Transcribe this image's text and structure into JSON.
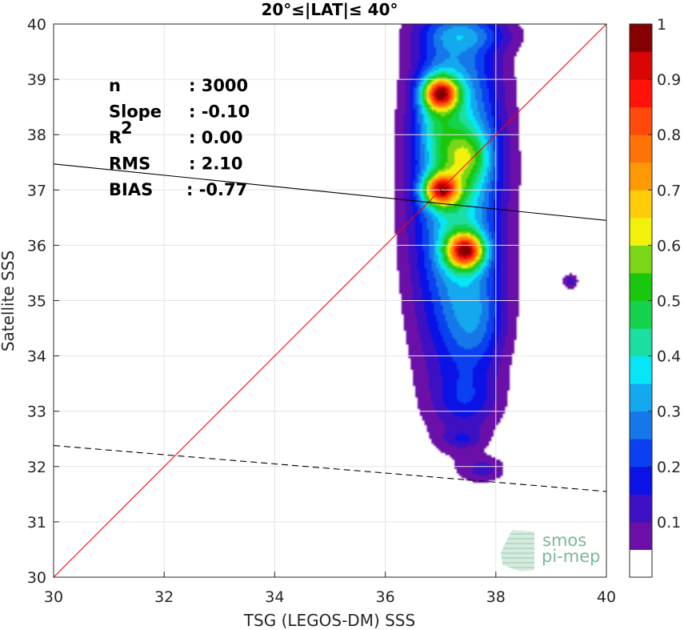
{
  "chart_data": {
    "type": "heatmap",
    "title": "20°≤|LAT|≤ 40°",
    "xlabel": "TSG (LEGOS-DM) SSS",
    "ylabel": "Satellite SSS",
    "xlim": [
      30,
      40
    ],
    "ylim": [
      30,
      40
    ],
    "x_ticks": [
      "30",
      "32",
      "34",
      "36",
      "38",
      "40"
    ],
    "y_ticks": [
      "30",
      "31",
      "32",
      "33",
      "34",
      "35",
      "36",
      "37",
      "38",
      "39",
      "40"
    ],
    "grid": true,
    "colorbar": {
      "range": [
        0,
        1
      ],
      "tick_labels": [
        "0.1",
        "0.2",
        "0.3",
        "0.4",
        "0.5",
        "0.6",
        "0.7",
        "0.8",
        "0.9",
        "1"
      ],
      "levels": [
        {
          "from": 0.0,
          "to": 0.05,
          "color": "#ffffff"
        },
        {
          "from": 0.05,
          "to": 0.1,
          "color": "#6a0fa8"
        },
        {
          "from": 0.1,
          "to": 0.15,
          "color": "#3d10c4"
        },
        {
          "from": 0.15,
          "to": 0.2,
          "color": "#0a12e6"
        },
        {
          "from": 0.2,
          "to": 0.25,
          "color": "#0a40f0"
        },
        {
          "from": 0.25,
          "to": 0.3,
          "color": "#1677e8"
        },
        {
          "from": 0.3,
          "to": 0.35,
          "color": "#14a8ee"
        },
        {
          "from": 0.35,
          "to": 0.4,
          "color": "#06e6f6"
        },
        {
          "from": 0.4,
          "to": 0.45,
          "color": "#1adfa0"
        },
        {
          "from": 0.45,
          "to": 0.5,
          "color": "#15d24d"
        },
        {
          "from": 0.5,
          "to": 0.55,
          "color": "#19c80c"
        },
        {
          "from": 0.55,
          "to": 0.6,
          "color": "#7ad616"
        },
        {
          "from": 0.6,
          "to": 0.65,
          "color": "#f1f10c"
        },
        {
          "from": 0.65,
          "to": 0.7,
          "color": "#ffcc0a"
        },
        {
          "from": 0.7,
          "to": 0.75,
          "color": "#ff9a06"
        },
        {
          "from": 0.75,
          "to": 0.8,
          "color": "#ff7206"
        },
        {
          "from": 0.8,
          "to": 0.85,
          "color": "#ff4a0c"
        },
        {
          "from": 0.85,
          "to": 0.9,
          "color": "#ff1308"
        },
        {
          "from": 0.9,
          "to": 0.95,
          "color": "#d90606"
        },
        {
          "from": 0.95,
          "to": 1.0,
          "color": "#850000"
        }
      ]
    },
    "density_blobs": [
      {
        "cx": 37.3,
        "cy": 37.2,
        "sx": 0.55,
        "sy": 2.4,
        "amp": 0.42
      },
      {
        "cx": 37.0,
        "cy": 38.75,
        "sx": 0.22,
        "sy": 0.2,
        "amp": 0.62
      },
      {
        "cx": 37.5,
        "cy": 37.6,
        "sx": 0.3,
        "sy": 0.35,
        "amp": 0.22
      },
      {
        "cx": 37.0,
        "cy": 37.0,
        "sx": 0.22,
        "sy": 0.2,
        "amp": 0.6
      },
      {
        "cx": 37.45,
        "cy": 35.9,
        "sx": 0.24,
        "sy": 0.22,
        "amp": 0.65
      },
      {
        "cx": 37.7,
        "cy": 34.6,
        "sx": 0.35,
        "sy": 0.6,
        "amp": 0.12
      },
      {
        "cx": 37.5,
        "cy": 33.2,
        "sx": 0.4,
        "sy": 0.35,
        "amp": 0.1
      },
      {
        "cx": 37.4,
        "cy": 32.5,
        "sx": 0.25,
        "sy": 0.12,
        "amp": 0.09
      },
      {
        "cx": 37.8,
        "cy": 31.95,
        "sx": 0.25,
        "sy": 0.15,
        "amp": 0.1
      },
      {
        "cx": 39.35,
        "cy": 35.35,
        "sx": 0.1,
        "sy": 0.1,
        "amp": 0.12
      },
      {
        "cx": 37.5,
        "cy": 39.8,
        "sx": 0.6,
        "sy": 0.2,
        "amp": 0.12
      },
      {
        "cx": 36.9,
        "cy": 38.3,
        "sx": 0.25,
        "sy": 0.6,
        "amp": 0.15
      }
    ],
    "lines": [
      {
        "name": "",
        "style": "solid",
        "color": "#ff0000",
        "x": [
          30,
          40
        ],
        "y": [
          30,
          40
        ]
      },
      {
        "name": "",
        "style": "solid",
        "color": "#000000",
        "x": [
          30,
          40
        ],
        "y": [
          37.47,
          36.45
        ]
      },
      {
        "name": "",
        "style": "dashed",
        "color": "#000000",
        "x": [
          30,
          40
        ],
        "y": [
          32.38,
          31.55
        ]
      }
    ],
    "stats": [
      {
        "label": "n",
        "value": ": 3000"
      },
      {
        "label": "Slope",
        "value": ": -0.10"
      },
      {
        "label": "R",
        "sup": "2",
        "value": ": 0.00"
      },
      {
        "label": "RMS",
        "value": ": 2.10"
      },
      {
        "label": "BIAS",
        "value": ": -0.77"
      }
    ]
  },
  "logo": {
    "line1": "smos",
    "line2": "pi-mep"
  }
}
